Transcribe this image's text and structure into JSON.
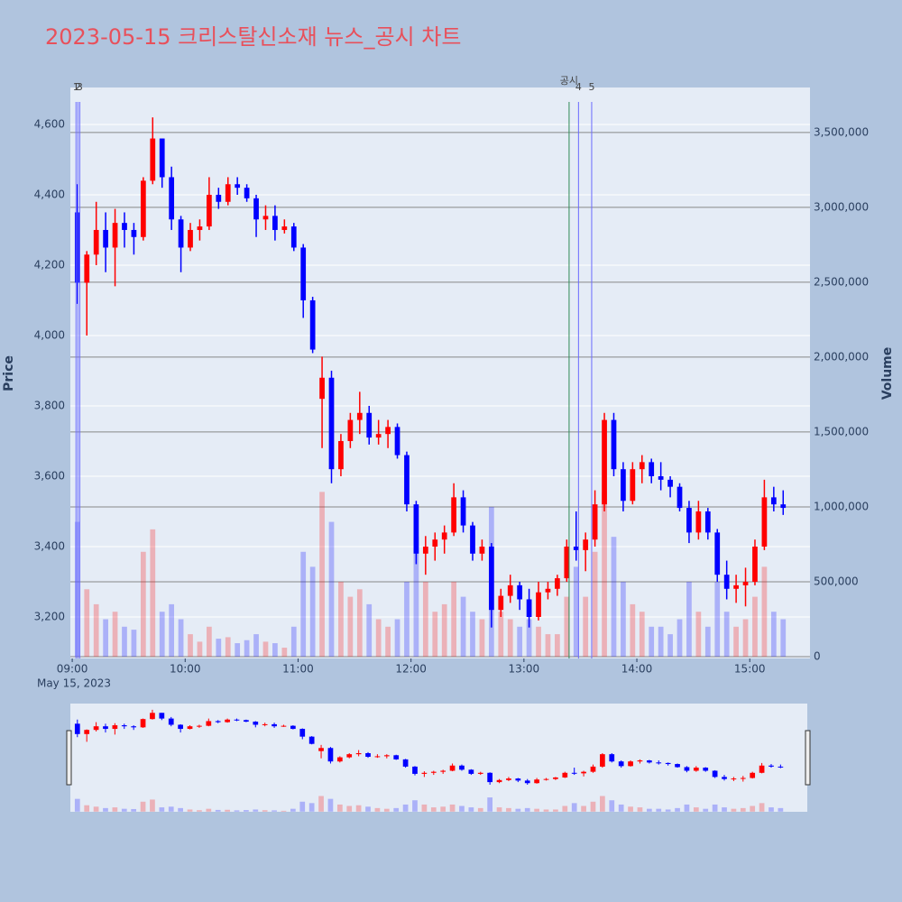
{
  "chart_data": {
    "type": "candlestick",
    "title": "2023-05-15 크리스탈신소재 뉴스_공시 차트",
    "x": [
      "2023-05-15 09:00",
      "2023-05-15 09:05",
      "2023-05-15 09:10",
      "2023-05-15 09:15",
      "2023-05-15 09:20",
      "2023-05-15 09:25",
      "2023-05-15 09:30",
      "2023-05-15 09:35",
      "2023-05-15 09:40",
      "2023-05-15 09:45",
      "2023-05-15 09:50",
      "2023-05-15 09:55",
      "2023-05-15 10:00",
      "2023-05-15 10:05",
      "2023-05-15 10:10",
      "2023-05-15 10:15",
      "2023-05-15 10:20",
      "2023-05-15 10:25",
      "2023-05-15 10:30",
      "2023-05-15 10:35",
      "2023-05-15 10:40",
      "2023-05-15 10:45",
      "2023-05-15 10:50",
      "2023-05-15 10:55",
      "2023-05-15 11:00",
      "2023-05-15 11:05",
      "2023-05-15 11:10",
      "2023-05-15 11:15",
      "2023-05-15 11:20",
      "2023-05-15 11:25",
      "2023-05-15 11:30",
      "2023-05-15 11:35",
      "2023-05-15 11:40",
      "2023-05-15 11:45",
      "2023-05-15 11:50",
      "2023-05-15 11:55",
      "2023-05-15 12:00",
      "2023-05-15 12:05",
      "2023-05-15 12:10",
      "2023-05-15 12:15",
      "2023-05-15 12:20",
      "2023-05-15 12:25",
      "2023-05-15 12:30",
      "2023-05-15 12:35",
      "2023-05-15 12:40",
      "2023-05-15 12:45",
      "2023-05-15 12:50",
      "2023-05-15 12:55",
      "2023-05-15 13:00",
      "2023-05-15 13:05",
      "2023-05-15 13:10",
      "2023-05-15 13:15",
      "2023-05-15 13:20",
      "2023-05-15 13:25",
      "2023-05-15 13:30",
      "2023-05-15 13:35",
      "2023-05-15 13:40",
      "2023-05-15 13:45",
      "2023-05-15 13:50",
      "2023-05-15 13:55",
      "2023-05-15 14:00",
      "2023-05-15 14:05",
      "2023-05-15 14:10",
      "2023-05-15 14:15",
      "2023-05-15 14:20",
      "2023-05-15 14:25",
      "2023-05-15 14:30",
      "2023-05-15 14:35",
      "2023-05-15 14:40",
      "2023-05-15 14:45",
      "2023-05-15 14:50",
      "2023-05-15 14:55",
      "2023-05-15 15:00",
      "2023-05-15 15:05",
      "2023-05-15 15:10",
      "2023-05-15 15:15"
    ],
    "open": [
      4350,
      4150,
      4230,
      4300,
      4250,
      4320,
      4300,
      4280,
      4440,
      4560,
      4450,
      4330,
      4250,
      4300,
      4310,
      4400,
      4380,
      4430,
      4420,
      4390,
      4330,
      4340,
      4300,
      4310,
      4250,
      4100,
      3820,
      3880,
      3620,
      3700,
      3760,
      3780,
      3710,
      3720,
      3740,
      3660,
      3520,
      3380,
      3400,
      3420,
      3440,
      3540,
      3460,
      3380,
      3400,
      3220,
      3260,
      3290,
      3250,
      3200,
      3270,
      3280,
      3310,
      3400,
      3390,
      3420,
      3520,
      3760,
      3620,
      3530,
      3620,
      3640,
      3600,
      3590,
      3570,
      3510,
      3440,
      3500,
      3440,
      3320,
      3280,
      3290,
      3300,
      3400,
      3540,
      3520
    ],
    "high": [
      4430,
      4240,
      4380,
      4350,
      4360,
      4350,
      4320,
      4450,
      4620,
      4560,
      4480,
      4340,
      4320,
      4330,
      4450,
      4420,
      4450,
      4450,
      4430,
      4400,
      4370,
      4370,
      4330,
      4320,
      4260,
      4110,
      3940,
      3900,
      3720,
      3780,
      3840,
      3800,
      3760,
      3760,
      3750,
      3670,
      3530,
      3430,
      3440,
      3460,
      3580,
      3560,
      3470,
      3420,
      3410,
      3280,
      3320,
      3300,
      3280,
      3300,
      3300,
      3320,
      3420,
      3500,
      3440,
      3560,
      3780,
      3780,
      3640,
      3640,
      3660,
      3650,
      3640,
      3600,
      3580,
      3530,
      3530,
      3510,
      3450,
      3360,
      3320,
      3340,
      3420,
      3590,
      3570,
      3560
    ],
    "low": [
      4090,
      4000,
      4200,
      4180,
      4140,
      4250,
      4230,
      4270,
      4430,
      4420,
      4300,
      4180,
      4240,
      4270,
      4300,
      4360,
      4370,
      4400,
      4380,
      4280,
      4300,
      4270,
      4290,
      4240,
      4050,
      3950,
      3680,
      3580,
      3600,
      3680,
      3720,
      3690,
      3690,
      3680,
      3650,
      3500,
      3350,
      3320,
      3360,
      3380,
      3430,
      3440,
      3360,
      3360,
      3170,
      3200,
      3240,
      3220,
      3170,
      3190,
      3250,
      3260,
      3300,
      3360,
      3330,
      3400,
      3500,
      3600,
      3500,
      3520,
      3580,
      3580,
      3560,
      3540,
      3500,
      3410,
      3420,
      3420,
      3300,
      3250,
      3240,
      3230,
      3290,
      3390,
      3500,
      3490
    ],
    "close": [
      4150,
      4230,
      4300,
      4250,
      4320,
      4300,
      4280,
      4440,
      4560,
      4450,
      4330,
      4250,
      4300,
      4310,
      4400,
      4380,
      4430,
      4420,
      4390,
      4330,
      4340,
      4300,
      4310,
      4250,
      4100,
      3960,
      3880,
      3620,
      3700,
      3760,
      3780,
      3710,
      3720,
      3740,
      3660,
      3520,
      3380,
      3400,
      3420,
      3440,
      3540,
      3460,
      3380,
      3400,
      3220,
      3260,
      3290,
      3250,
      3200,
      3270,
      3280,
      3310,
      3400,
      3390,
      3420,
      3520,
      3760,
      3620,
      3530,
      3620,
      3640,
      3600,
      3590,
      3570,
      3510,
      3440,
      3500,
      3440,
      3320,
      3280,
      3290,
      3300,
      3400,
      3540,
      3520,
      3510
    ],
    "volume": [
      900000,
      450000,
      350000,
      250000,
      300000,
      200000,
      180000,
      700000,
      850000,
      300000,
      350000,
      250000,
      150000,
      100000,
      200000,
      120000,
      130000,
      90000,
      110000,
      150000,
      100000,
      90000,
      60000,
      200000,
      700000,
      600000,
      1100000,
      900000,
      500000,
      400000,
      450000,
      350000,
      250000,
      200000,
      250000,
      500000,
      800000,
      500000,
      300000,
      350000,
      500000,
      400000,
      300000,
      250000,
      1000000,
      300000,
      250000,
      200000,
      250000,
      200000,
      150000,
      150000,
      400000,
      600000,
      400000,
      700000,
      1100000,
      800000,
      500000,
      350000,
      300000,
      200000,
      200000,
      150000,
      250000,
      500000,
      300000,
      200000,
      500000,
      300000,
      200000,
      250000,
      400000,
      600000,
      300000,
      250000
    ],
    "up_color": "#ff0000",
    "down_color": "#0000ff",
    "xlim": [
      "2023-05-15 08:59",
      "2023-05-15 15:32"
    ],
    "xticks": [
      {
        "value": "2023-05-15 09:00",
        "label": "09:00"
      },
      {
        "value": "2023-05-15 10:00",
        "label": "10:00"
      },
      {
        "value": "2023-05-15 11:00",
        "label": "11:00"
      },
      {
        "value": "2023-05-15 12:00",
        "label": "12:00"
      },
      {
        "value": "2023-05-15 13:00",
        "label": "13:00"
      },
      {
        "value": "2023-05-15 14:00",
        "label": "14:00"
      },
      {
        "value": "2023-05-15 15:00",
        "label": "15:00"
      }
    ],
    "x_sublabel": "May 15, 2023",
    "y_label": "Price",
    "y2_label": "Volume",
    "ylim": [
      3082,
      4705
    ],
    "yticks": [
      {
        "value": 3200,
        "label": "3,200"
      },
      {
        "value": 3400,
        "label": "3,400"
      },
      {
        "value": 3600,
        "label": "3,600"
      },
      {
        "value": 3800,
        "label": "3,800"
      },
      {
        "value": 4000,
        "label": "4,000"
      },
      {
        "value": 4200,
        "label": "4,200"
      },
      {
        "value": 4400,
        "label": "4,400"
      },
      {
        "value": 4600,
        "label": "4,600"
      }
    ],
    "y2lim": [
      -12000,
      3800000
    ],
    "y2ticks": [
      0,
      {
        "value": 500000,
        "label": "500,000"
      },
      {
        "value": 1000000,
        "label": "1,000,000"
      },
      {
        "value": 1500000,
        "label": "1,500,000"
      },
      {
        "value": 2000000,
        "label": "2,000,000"
      },
      {
        "value": 2500000,
        "label": "2,500,000"
      },
      {
        "value": 3000000,
        "label": "3,000,000"
      },
      {
        "value": 3500000,
        "label": "3,500,000"
      }
    ],
    "events": [
      {
        "x": "2023-05-15 09:02",
        "label": "1",
        "color": "#6a6aff"
      },
      {
        "x": "2023-05-15 09:03",
        "label": "2",
        "color": "#6a6aff"
      },
      {
        "x": "2023-05-15 09:04",
        "label": "3",
        "color": "#6a6aff"
      },
      {
        "x": "2023-05-15 13:24",
        "label": "공시",
        "color": "#2e8b57"
      },
      {
        "x": "2023-05-15 13:29",
        "label": "4",
        "color": "#6a6aff"
      },
      {
        "x": "2023-05-15 13:36",
        "label": "5",
        "color": "#6a6aff"
      }
    ]
  }
}
